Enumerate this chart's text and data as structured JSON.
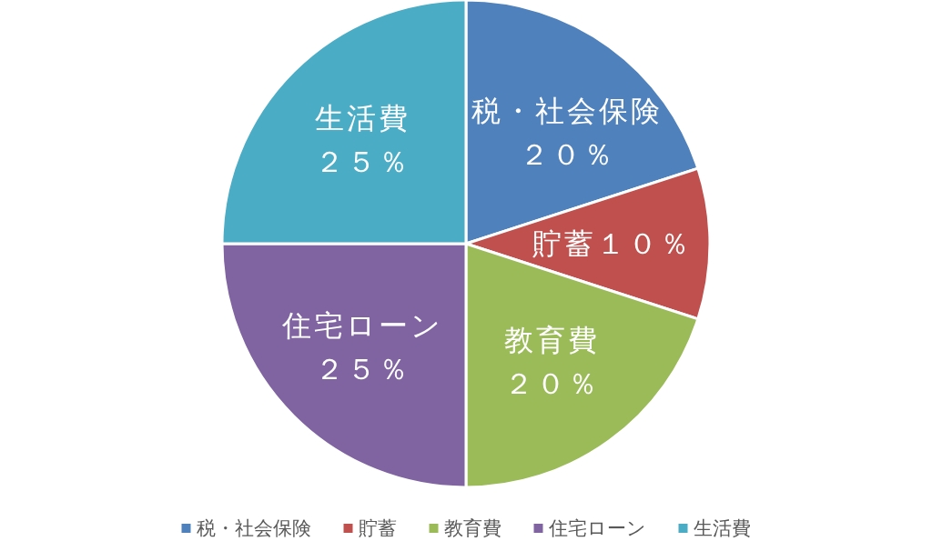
{
  "chart_data": {
    "type": "pie",
    "categories": [
      "税・社会保険",
      "貯蓄",
      "教育費",
      "住宅ローン",
      "生活費"
    ],
    "values": [
      20,
      10,
      20,
      25,
      25
    ],
    "colors": [
      "#4f81bd",
      "#c0504d",
      "#9bbb59",
      "#8064a2",
      "#4bacc6"
    ],
    "value_labels": [
      "２０％",
      "１０％",
      "２０％",
      "２５％",
      "２５％"
    ],
    "legend": "bottom"
  }
}
